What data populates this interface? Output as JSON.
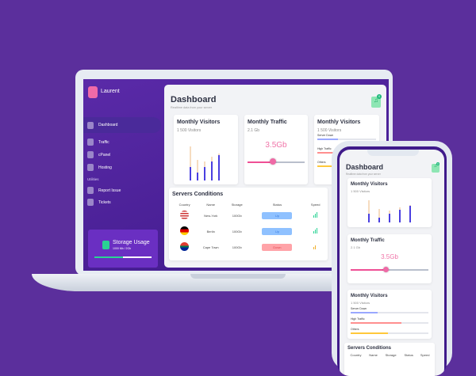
{
  "colors": {
    "background": "#5b2f9c",
    "sidebar": "#4a1f96",
    "accent_pink": "#f074a8",
    "green": "#2ad394",
    "bar_blue": "#4a3fe0",
    "bar_peach": "#f6dcc0",
    "up": "#8fc1ff",
    "down": "#ffa3a8"
  },
  "sidebar": {
    "user": "Laurent",
    "items": [
      {
        "label": "Dashboard",
        "icon": "dashboard-icon",
        "active": true
      },
      {
        "label": "Traffic",
        "icon": "traffic-icon"
      },
      {
        "label": "cPanel",
        "icon": "cpanel-icon"
      },
      {
        "label": "Hosting",
        "icon": "hosting-icon"
      }
    ],
    "section": "Utilities",
    "utilities": [
      {
        "label": "Report Issue",
        "icon": "report-icon"
      },
      {
        "label": "Tickets",
        "icon": "ticket-icon"
      }
    ],
    "storage": {
      "title": "Storage Usage",
      "detail": "1000 Mb / 2Gb",
      "percent": 50
    }
  },
  "header": {
    "title": "Dashboard",
    "subtitle": "Realtime data from your server",
    "notifications": "0"
  },
  "visitors": {
    "title": "Monthly Visitors",
    "subtitle": "1 500 Visitors",
    "bars": [
      {
        "total": 65,
        "value": 25
      },
      {
        "total": 40,
        "value": 15
      },
      {
        "total": 36,
        "value": 25
      },
      {
        "total": 45,
        "value": 37
      },
      {
        "total": 52,
        "value": 48
      }
    ]
  },
  "traffic": {
    "title": "Monthly Traffic",
    "subtitle": "2.1 Gb",
    "value": "3.5Gb",
    "slider_percent": 45
  },
  "visitors2": {
    "title": "Monthly Visitors",
    "subtitle": "1 500 Visitors",
    "items": [
      {
        "label": "Server Down",
        "percent": 35,
        "color": "#9aa8ff"
      },
      {
        "label": "High Traffic",
        "percent": 65,
        "color": "#ff8f8f"
      },
      {
        "label": "Others",
        "percent": 48,
        "color": "#ffc83a"
      }
    ]
  },
  "servers": {
    "title": "Servers Conditions",
    "columns": [
      "Country",
      "Name",
      "Storage",
      "Status",
      "Speed"
    ],
    "rows": [
      {
        "flag": "us",
        "name": "New-York",
        "storage": "100Gb",
        "status": "Up",
        "speed": 3
      },
      {
        "flag": "de",
        "name": "Berlin",
        "storage": "100Gb",
        "status": "Up",
        "speed": 3
      },
      {
        "flag": "za",
        "name": "Cape Town",
        "storage": "100Gb",
        "status": "Down",
        "speed": 2
      }
    ]
  }
}
